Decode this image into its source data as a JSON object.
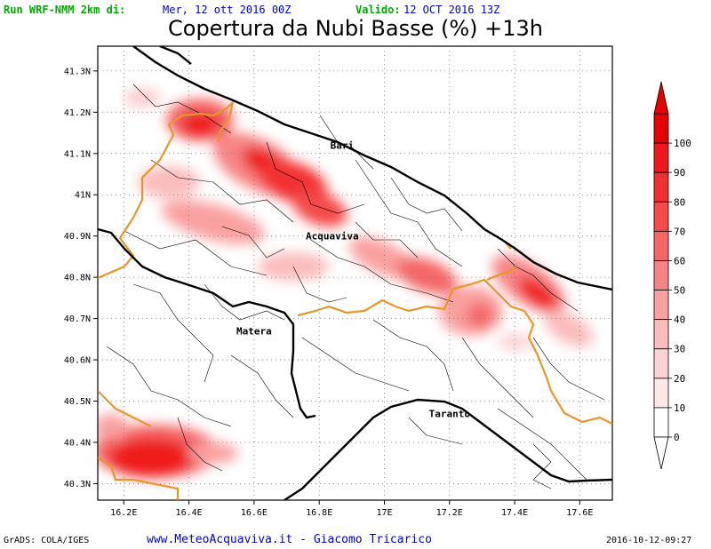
{
  "header": {
    "model_label": "Run WRF-NMM 2km di:",
    "run_date": "Mer, 12 ott 2016 00Z",
    "valid_label": "Valido:",
    "valid_date": "12 OCT 2016 13Z"
  },
  "title": "Copertura da Nubi Basse (%) +13h",
  "map": {
    "lat_labels": [
      "41.3N",
      "41.2N",
      "41.1N",
      "41N",
      "40.9N",
      "40.8N",
      "40.7N",
      "40.6N",
      "40.5N",
      "40.4N",
      "40.3N"
    ],
    "lat_values": [
      41.3,
      41.2,
      41.1,
      41.0,
      40.9,
      40.8,
      40.7,
      40.6,
      40.5,
      40.4,
      40.3
    ],
    "lon_labels": [
      "16.2E",
      "16.4E",
      "16.6E",
      "16.8E",
      "17E",
      "17.2E",
      "17.4E",
      "17.6E"
    ],
    "lon_values": [
      16.2,
      16.4,
      16.6,
      16.8,
      17.0,
      17.2,
      17.4,
      17.6
    ],
    "lon_range": [
      16.12,
      17.7
    ],
    "lat_range": [
      40.26,
      41.36
    ],
    "places": [
      {
        "name": "Bari",
        "lon": 16.87,
        "lat": 41.12
      },
      {
        "name": "Acquaviva",
        "lon": 16.84,
        "lat": 40.9
      },
      {
        "name": "Matera",
        "lon": 16.6,
        "lat": 40.67
      },
      {
        "name": "Taranto",
        "lon": 17.2,
        "lat": 40.47
      }
    ]
  },
  "colorbar": {
    "labels": [
      "0",
      "10",
      "20",
      "30",
      "40",
      "50",
      "60",
      "70",
      "80",
      "90",
      "100"
    ],
    "colors": [
      "#ffffff",
      "#fde8e8",
      "#fcd4d4",
      "#fbbcbc",
      "#f9a0a0",
      "#f78484",
      "#f56666",
      "#f44a4a",
      "#f23030",
      "#ef1a1a",
      "#e60000"
    ]
  },
  "footer": {
    "left": "GrADS: COLA/IGES",
    "center": "www.MeteoAcquaviva.it - Giacomo Tricarico",
    "right": "2016-10-12-09:27"
  }
}
